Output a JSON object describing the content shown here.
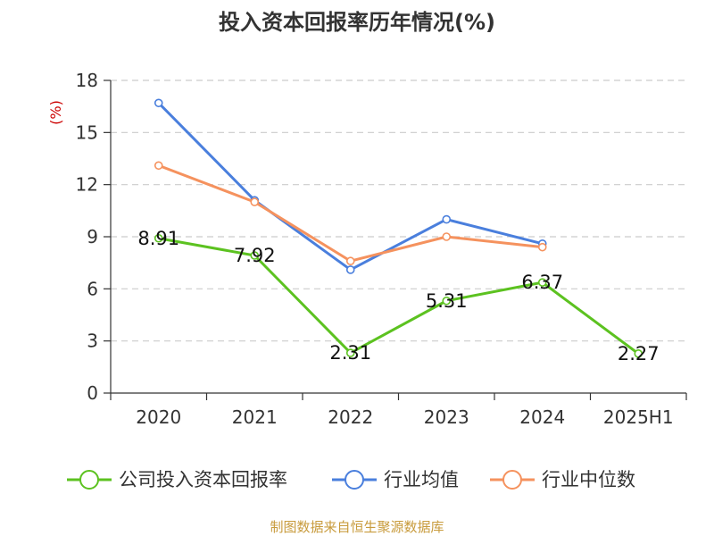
{
  "chart_data": {
    "type": "line",
    "title": "投入资本回报率历年情况(%)",
    "ylabel": "(%)",
    "xlabel": "",
    "categories": [
      "2020",
      "2021",
      "2022",
      "2023",
      "2024",
      "2025H1"
    ],
    "ylim": [
      0,
      18
    ],
    "yticks": [
      0,
      3,
      6,
      9,
      12,
      15,
      18
    ],
    "grid": true,
    "legend_position": "bottom",
    "series": [
      {
        "name": "公司投入资本回报率",
        "values": [
          8.91,
          7.92,
          2.31,
          5.31,
          6.37,
          2.27
        ],
        "labels": [
          "8.91",
          "7.92",
          "2.31",
          "5.31",
          "6.37",
          "2.27"
        ],
        "color": "#5cc220"
      },
      {
        "name": "行业均值",
        "values": [
          16.7,
          11.1,
          7.1,
          10.0,
          8.6,
          null
        ],
        "color": "#4a7fdd"
      },
      {
        "name": "行业中位数",
        "values": [
          13.1,
          11.0,
          7.6,
          9.0,
          8.4,
          null
        ],
        "color": "#f5925e"
      }
    ]
  },
  "source_text": "制图数据来自恒生聚源数据库"
}
